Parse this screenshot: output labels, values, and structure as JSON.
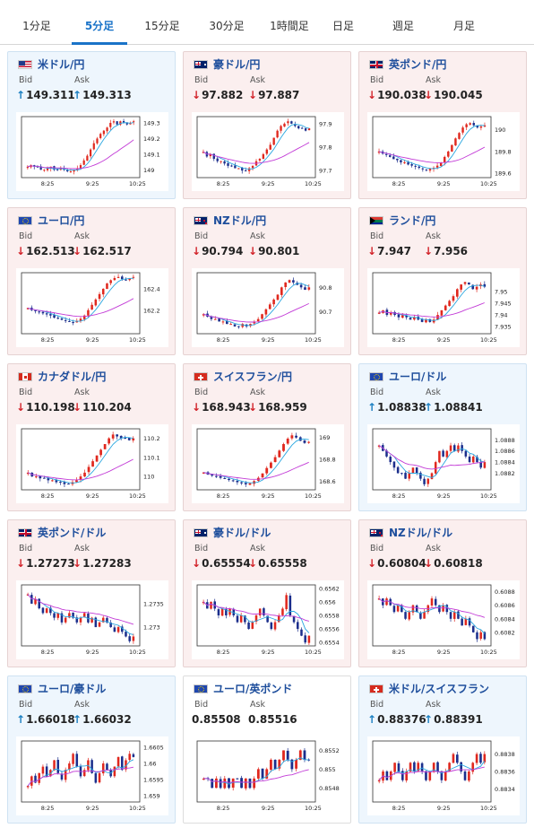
{
  "tabs": [
    "1分足",
    "5分足",
    "15分足",
    "30分足",
    "1時間足",
    "日足",
    "週足",
    "月足"
  ],
  "active_tab": 1,
  "labels": {
    "bid": "Bid",
    "ask": "Ask"
  },
  "colors": {
    "up_arrow": "#1a7fc1",
    "down_arrow": "#d2232a",
    "candle_up": "#e0281e",
    "candle_down": "#1b2e8c",
    "ma_short": "#2aa7e0",
    "ma_long": "#c23ad6",
    "pair_name": "#1e4e9c",
    "active_tab": "#1a73c8"
  },
  "time_labels": [
    "8:25",
    "9:25",
    "10:25"
  ],
  "cards": [
    {
      "pair": "米ドル/円",
      "flag": "us-flag-icon",
      "bg": "blue",
      "bid_dir": "up",
      "bid": "149.311",
      "ask_dir": "up",
      "ask": "149.313",
      "chart_data": {
        "type": "candlestick",
        "ticks": [
          "149.3",
          "149.2",
          "149.1",
          "149"
        ],
        "ylim": [
          148.95,
          149.34
        ],
        "close": [
          149.02,
          149.03,
          149.02,
          149.02,
          149.0,
          149.0,
          149.01,
          149.02,
          149.0,
          149.0,
          149.01,
          149.0,
          148.99,
          148.99,
          149.0,
          149.01,
          149.03,
          149.06,
          149.09,
          149.13,
          149.17,
          149.2,
          149.23,
          149.25,
          149.27,
          149.3,
          149.31,
          149.29,
          149.31,
          149.3,
          149.29,
          149.3,
          149.31
        ]
      }
    },
    {
      "pair": "豪ドル/円",
      "flag": "au-flag-icon",
      "bg": "red",
      "bid_dir": "down",
      "bid": "97.882",
      "ask_dir": "down",
      "ask": "97.887",
      "chart_data": {
        "type": "candlestick",
        "ticks": [
          "97.9",
          "97.8",
          "97.7"
        ],
        "ylim": [
          97.67,
          97.93
        ],
        "close": [
          97.78,
          97.76,
          97.77,
          97.75,
          97.74,
          97.74,
          97.73,
          97.72,
          97.72,
          97.71,
          97.71,
          97.7,
          97.7,
          97.71,
          97.72,
          97.74,
          97.75,
          97.77,
          97.79,
          97.81,
          97.84,
          97.87,
          97.89,
          97.9,
          97.91,
          97.9,
          97.89,
          97.88,
          97.88,
          97.87,
          97.88
        ]
      }
    },
    {
      "pair": "英ポンド/円",
      "flag": "uk-flag-icon",
      "bg": "red",
      "bid_dir": "down",
      "bid": "190.038",
      "ask_dir": "down",
      "ask": "190.045",
      "chart_data": {
        "type": "candlestick",
        "ticks": [
          "190",
          "189.8",
          "189.6"
        ],
        "ylim": [
          189.56,
          190.12
        ],
        "close": [
          189.8,
          189.78,
          189.77,
          189.75,
          189.73,
          189.72,
          189.7,
          189.7,
          189.68,
          189.67,
          189.66,
          189.65,
          189.64,
          189.63,
          189.64,
          189.65,
          189.67,
          189.7,
          189.75,
          189.8,
          189.86,
          189.92,
          189.97,
          190.02,
          190.05,
          190.06,
          190.04,
          190.02,
          190.03,
          190.04
        ]
      }
    },
    {
      "pair": "ユーロ/円",
      "flag": "eu-flag-icon",
      "bg": "red",
      "bid_dir": "down",
      "bid": "162.513",
      "ask_dir": "down",
      "ask": "162.517",
      "chart_data": {
        "type": "candlestick",
        "ticks": [
          "162.4",
          "162.2"
        ],
        "ylim": [
          161.98,
          162.55
        ],
        "close": [
          162.22,
          162.2,
          162.19,
          162.18,
          162.17,
          162.16,
          162.15,
          162.13,
          162.12,
          162.11,
          162.1,
          162.09,
          162.08,
          162.1,
          162.12,
          162.15,
          162.2,
          162.25,
          162.3,
          162.35,
          162.4,
          162.45,
          162.48,
          162.5,
          162.51,
          162.49,
          162.48,
          162.5,
          162.51
        ]
      }
    },
    {
      "pair": "NZドル/円",
      "flag": "nz-flag-icon",
      "bg": "red",
      "bid_dir": "down",
      "bid": "90.794",
      "ask_dir": "down",
      "ask": "90.801",
      "chart_data": {
        "type": "candlestick",
        "ticks": [
          "90.8",
          "90.7"
        ],
        "ylim": [
          90.61,
          90.86
        ],
        "close": [
          90.69,
          90.68,
          90.67,
          90.67,
          90.66,
          90.66,
          90.65,
          90.65,
          90.64,
          90.64,
          90.65,
          90.64,
          90.65,
          90.66,
          90.67,
          90.69,
          90.71,
          90.73,
          90.75,
          90.77,
          90.8,
          90.82,
          90.83,
          90.82,
          90.81,
          90.8,
          90.79,
          90.8
        ]
      }
    },
    {
      "pair": "ランド/円",
      "flag": "za-flag-icon",
      "bg": "red",
      "bid_dir": "down",
      "bid": "7.947",
      "ask_dir": "down",
      "ask": "7.956",
      "chart_data": {
        "type": "candlestick",
        "ticks": [
          "7.95",
          "7.945",
          "7.94",
          "7.935"
        ],
        "ylim": [
          7.932,
          7.958
        ],
        "close": [
          7.941,
          7.942,
          7.94,
          7.941,
          7.94,
          7.939,
          7.94,
          7.939,
          7.938,
          7.939,
          7.938,
          7.937,
          7.938,
          7.937,
          7.938,
          7.94,
          7.942,
          7.944,
          7.946,
          7.948,
          7.951,
          7.953,
          7.954,
          7.953,
          7.951,
          7.952,
          7.953,
          7.952
        ]
      }
    },
    {
      "pair": "カナダドル/円",
      "flag": "ca-flag-icon",
      "bg": "red",
      "bid_dir": "down",
      "bid": "110.198",
      "ask_dir": "down",
      "ask": "110.204",
      "chart_data": {
        "type": "candlestick",
        "ticks": [
          "110.2",
          "110.1",
          "110"
        ],
        "ylim": [
          109.93,
          110.25
        ],
        "close": [
          110.02,
          110.0,
          110.0,
          109.99,
          109.99,
          109.98,
          109.98,
          109.97,
          109.97,
          109.96,
          109.96,
          109.97,
          109.98,
          110.0,
          110.02,
          110.05,
          110.08,
          110.11,
          110.14,
          110.17,
          110.2,
          110.22,
          110.21,
          110.2,
          110.2,
          110.19,
          110.2
        ]
      }
    },
    {
      "pair": "スイスフラン/円",
      "flag": "ch-flag-icon",
      "bg": "red",
      "bid_dir": "down",
      "bid": "168.943",
      "ask_dir": "down",
      "ask": "168.959",
      "chart_data": {
        "type": "candlestick",
        "ticks": [
          "169",
          "168.8",
          "168.6"
        ],
        "ylim": [
          168.52,
          169.08
        ],
        "close": [
          168.68,
          168.66,
          168.65,
          168.64,
          168.63,
          168.62,
          168.61,
          168.6,
          168.59,
          168.58,
          168.57,
          168.58,
          168.6,
          168.63,
          168.67,
          168.72,
          168.77,
          168.82,
          168.88,
          168.94,
          168.99,
          169.02,
          169.0,
          168.97,
          168.95,
          168.96
        ]
      }
    },
    {
      "pair": "ユーロ/ドル",
      "flag": "eu-flag-icon",
      "bg": "blue",
      "bid_dir": "up",
      "bid": "1.08838",
      "ask_dir": "up",
      "ask": "1.08841",
      "chart_data": {
        "type": "candlestick",
        "ticks": [
          "1.0888",
          "1.0886",
          "1.0884",
          "1.0882"
        ],
        "ylim": [
          1.0879,
          1.089
        ],
        "close": [
          1.0887,
          1.0886,
          1.0885,
          1.0884,
          1.0883,
          1.0882,
          1.0882,
          1.0881,
          1.0882,
          1.0883,
          1.0882,
          1.0881,
          1.088,
          1.0881,
          1.0882,
          1.0884,
          1.0886,
          1.0885,
          1.0886,
          1.0887,
          1.0886,
          1.0887,
          1.0886,
          1.0885,
          1.0884,
          1.0885,
          1.0884,
          1.0883,
          1.0884
        ]
      }
    },
    {
      "pair": "英ポンド/ドル",
      "flag": "uk-flag-icon",
      "bg": "red",
      "bid_dir": "down",
      "bid": "1.27273",
      "ask_dir": "down",
      "ask": "1.27283",
      "chart_data": {
        "type": "candlestick",
        "ticks": [
          "1.2735",
          "1.273"
        ],
        "ylim": [
          1.2726,
          1.2739
        ],
        "close": [
          1.2737,
          1.2735,
          1.2736,
          1.2734,
          1.2733,
          1.2734,
          1.2733,
          1.2732,
          1.2733,
          1.2731,
          1.2732,
          1.2733,
          1.2732,
          1.2731,
          1.2732,
          1.2733,
          1.2731,
          1.2732,
          1.273,
          1.2731,
          1.2732,
          1.2731,
          1.273,
          1.2729,
          1.273,
          1.2729,
          1.2728,
          1.2727,
          1.2728
        ]
      }
    },
    {
      "pair": "豪ドル/ドル",
      "flag": "au-flag-icon",
      "bg": "red",
      "bid_dir": "down",
      "bid": "0.65554",
      "ask_dir": "down",
      "ask": "0.65558",
      "chart_data": {
        "type": "candlestick",
        "ticks": [
          "0.6562",
          "0.656",
          "0.6558",
          "0.6556",
          "0.6554"
        ],
        "ylim": [
          0.65535,
          0.65625
        ],
        "close": [
          0.656,
          0.6559,
          0.656,
          0.6559,
          0.6558,
          0.6559,
          0.6558,
          0.6559,
          0.6558,
          0.6557,
          0.6558,
          0.6557,
          0.6556,
          0.6557,
          0.6558,
          0.6559,
          0.6558,
          0.6557,
          0.6556,
          0.6557,
          0.6558,
          0.6559,
          0.6561,
          0.6558,
          0.6557,
          0.6556,
          0.6555,
          0.6554,
          0.6555
        ]
      }
    },
    {
      "pair": "NZドル/ドル",
      "flag": "nz-flag-icon",
      "bg": "red",
      "bid_dir": "down",
      "bid": "0.60804",
      "ask_dir": "down",
      "ask": "0.60818",
      "chart_data": {
        "type": "candlestick",
        "ticks": [
          "0.6088",
          "0.6086",
          "0.6084",
          "0.6082"
        ],
        "ylim": [
          0.608,
          0.6089
        ],
        "close": [
          0.6087,
          0.6086,
          0.6087,
          0.6086,
          0.6085,
          0.6086,
          0.6085,
          0.6084,
          0.6085,
          0.6086,
          0.6085,
          0.6084,
          0.6085,
          0.6086,
          0.6087,
          0.6086,
          0.6085,
          0.6086,
          0.6085,
          0.6084,
          0.6085,
          0.6084,
          0.6083,
          0.6084,
          0.6083,
          0.6082,
          0.6081,
          0.6082,
          0.6081
        ]
      }
    },
    {
      "pair": "ユーロ/豪ドル",
      "flag": "eu-flag-icon",
      "bg": "blue",
      "bid_dir": "up",
      "bid": "1.66018",
      "ask_dir": "up",
      "ask": "1.66032",
      "chart_data": {
        "type": "candlestick",
        "ticks": [
          "1.6605",
          "1.66",
          "1.6595",
          "1.659"
        ],
        "ylim": [
          1.6588,
          1.6607
        ],
        "close": [
          1.6593,
          1.6596,
          1.6594,
          1.6597,
          1.6599,
          1.6596,
          1.6598,
          1.6601,
          1.6597,
          1.6595,
          1.6598,
          1.66,
          1.6603,
          1.6599,
          1.6596,
          1.6598,
          1.6601,
          1.6597,
          1.6594,
          1.6597,
          1.66,
          1.6598,
          1.6596,
          1.6599,
          1.6602,
          1.6598,
          1.6601,
          1.6603,
          1.6602
        ]
      }
    },
    {
      "pair": "ユーロ/英ポンド",
      "flag": "eu-flag-icon",
      "bg": "white",
      "bid_dir": "none",
      "bid": "0.85508",
      "ask_dir": "none",
      "ask": "0.85516",
      "chart_data": {
        "type": "candlestick",
        "ticks": [
          "0.8552",
          "0.855",
          "0.8548"
        ],
        "ylim": [
          0.85465,
          0.8553
        ],
        "close": [
          0.8549,
          0.8549,
          0.8548,
          0.8549,
          0.8548,
          0.8549,
          0.8548,
          0.8549,
          0.8549,
          0.8548,
          0.8549,
          0.8548,
          0.8549,
          0.855,
          0.8549,
          0.855,
          0.8551,
          0.855,
          0.8551,
          0.8552,
          0.8551,
          0.855,
          0.8551,
          0.8552,
          0.8551,
          0.8551
        ]
      }
    },
    {
      "pair": "米ドル/スイスフラン",
      "flag": "ch-flag-icon",
      "bg": "blue",
      "bid_dir": "up",
      "bid": "0.88376",
      "ask_dir": "up",
      "ask": "0.88391",
      "chart_data": {
        "type": "candlestick",
        "ticks": [
          "0.8838",
          "0.8836",
          "0.8834"
        ],
        "ylim": [
          0.88325,
          0.88395
        ],
        "close": [
          0.8835,
          0.8836,
          0.8835,
          0.8836,
          0.8837,
          0.8836,
          0.8835,
          0.8836,
          0.8837,
          0.8836,
          0.8837,
          0.8836,
          0.8835,
          0.8836,
          0.8837,
          0.8836,
          0.8835,
          0.8836,
          0.8837,
          0.8838,
          0.8837,
          0.8836,
          0.8835,
          0.8836,
          0.8837,
          0.8838,
          0.8837,
          0.8838
        ]
      }
    }
  ]
}
